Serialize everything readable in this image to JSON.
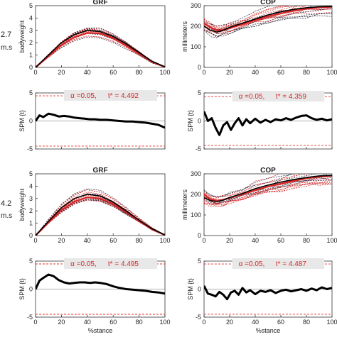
{
  "row_labels": [
    {
      "speed": "2.7",
      "unit": "m.s",
      "exp": "-1"
    },
    {
      "speed": "4.2",
      "unit": "m.s",
      "exp": "-1"
    }
  ],
  "xlabel": "%stance",
  "annotation_alpha": "α =0.05,",
  "colors": {
    "trace": "#d62728",
    "mean": "#000000",
    "spm": "#000000",
    "dashed": "#1a1a2e",
    "threshold": "#e0302a",
    "box": "#e8e8e8"
  },
  "chart_data": [
    {
      "id": "grf-2.7",
      "type": "line",
      "title": "GRF",
      "ylabel": "bodyweight",
      "xlim": [
        0,
        100
      ],
      "ylim": [
        0,
        5
      ],
      "xticks": [
        0,
        20,
        40,
        60,
        80,
        100
      ],
      "yticks": [
        0,
        1,
        2,
        3,
        4,
        5
      ],
      "x": [
        0,
        10,
        20,
        30,
        40,
        50,
        60,
        70,
        80,
        90,
        100
      ],
      "series": [
        {
          "values": [
            0,
            1.0,
            2.0,
            2.65,
            3.0,
            2.9,
            2.5,
            1.9,
            1.2,
            0.5,
            0.05
          ]
        },
        {
          "values": [
            0,
            0.9,
            1.8,
            2.45,
            2.8,
            2.75,
            2.35,
            1.75,
            1.1,
            0.45,
            0.03
          ]
        }
      ]
    },
    {
      "id": "cop-2.7",
      "type": "line",
      "title": "COP",
      "ylabel": "millimeters",
      "xlim": [
        0,
        100
      ],
      "ylim": [
        0,
        300
      ],
      "xticks": [
        0,
        20,
        40,
        60,
        80,
        100
      ],
      "yticks": [
        0,
        100,
        200,
        300
      ],
      "x": [
        0,
        5,
        10,
        15,
        20,
        30,
        40,
        50,
        60,
        70,
        80,
        90,
        100
      ],
      "series": [
        {
          "values": [
            200,
            180,
            172,
            180,
            195,
            215,
            235,
            255,
            270,
            282,
            290,
            295,
            296
          ]
        },
        {
          "values": [
            215,
            195,
            180,
            182,
            190,
            210,
            230,
            248,
            262,
            275,
            285,
            292,
            295
          ]
        }
      ]
    },
    {
      "id": "spm-2.7-grf",
      "type": "line",
      "ylabel": "SPM {t}",
      "xlim": [
        0,
        100
      ],
      "ylim": [
        -5,
        5
      ],
      "xticks": [
        0,
        20,
        40,
        60,
        80,
        100
      ],
      "yticks": [
        -5,
        0,
        5
      ],
      "threshold": 4.492,
      "t_label": "t* = 4.492",
      "x": [
        0,
        3,
        6,
        10,
        14,
        18,
        22,
        26,
        30,
        34,
        38,
        42,
        46,
        50,
        55,
        60,
        65,
        70,
        75,
        80,
        85,
        90,
        95,
        100
      ],
      "series": [
        {
          "values": [
            0,
            1.0,
            0.7,
            1.3,
            1.1,
            0.8,
            0.9,
            0.8,
            0.6,
            0.5,
            0.4,
            0.3,
            0.3,
            0.2,
            0.2,
            0.1,
            0.0,
            -0.1,
            -0.1,
            -0.2,
            -0.3,
            -0.5,
            -0.7,
            -1.2
          ]
        }
      ]
    },
    {
      "id": "spm-2.7-cop",
      "type": "line",
      "ylabel": "SPM {t}",
      "xlim": [
        0,
        100
      ],
      "ylim": [
        -5,
        5
      ],
      "xticks": [
        0,
        20,
        40,
        60,
        80,
        100
      ],
      "yticks": [
        -5,
        0,
        5
      ],
      "threshold": 4.359,
      "t_label": "t* = 4.359",
      "x": [
        0,
        3,
        6,
        9,
        12,
        15,
        18,
        21,
        24,
        27,
        30,
        33,
        36,
        40,
        44,
        48,
        52,
        56,
        60,
        64,
        68,
        72,
        76,
        80,
        84,
        88,
        92,
        96,
        100
      ],
      "series": [
        {
          "values": [
            1.7,
            0.0,
            0.5,
            -1.2,
            -2.5,
            -0.8,
            -0.2,
            -1.6,
            -0.4,
            0.5,
            -0.8,
            0.3,
            -0.4,
            0.4,
            -0.3,
            0.2,
            -0.2,
            0.3,
            0.1,
            0.5,
            0.2,
            0.6,
            0.9,
            1.0,
            0.5,
            0.2,
            0.4,
            0.1,
            0.3
          ]
        }
      ]
    },
    {
      "id": "grf-4.2",
      "type": "line",
      "title": "GRF",
      "ylabel": "bodyweight",
      "xlim": [
        0,
        100
      ],
      "ylim": [
        0,
        5
      ],
      "xticks": [
        0,
        20,
        40,
        60,
        80,
        100
      ],
      "yticks": [
        0,
        1,
        2,
        3,
        4,
        5
      ],
      "x": [
        0,
        10,
        20,
        30,
        40,
        50,
        60,
        70,
        80,
        90,
        100
      ],
      "series": [
        {
          "values": [
            0,
            1.15,
            2.25,
            3.0,
            3.35,
            3.2,
            2.7,
            2.0,
            1.25,
            0.55,
            0.05
          ]
        },
        {
          "values": [
            0,
            1.05,
            2.05,
            2.75,
            3.1,
            3.0,
            2.55,
            1.9,
            1.2,
            0.5,
            0.04
          ]
        }
      ]
    },
    {
      "id": "cop-4.2",
      "type": "line",
      "title": "COP",
      "ylabel": "millimeters",
      "xlim": [
        0,
        100
      ],
      "ylim": [
        0,
        300
      ],
      "xticks": [
        0,
        20,
        40,
        60,
        80,
        100
      ],
      "yticks": [
        0,
        100,
        200,
        300
      ],
      "x": [
        0,
        5,
        10,
        15,
        20,
        30,
        40,
        50,
        60,
        70,
        80,
        90,
        100
      ],
      "series": [
        {
          "values": [
            185,
            170,
            165,
            172,
            185,
            205,
            228,
            245,
            260,
            272,
            282,
            290,
            292
          ]
        },
        {
          "values": [
            198,
            178,
            170,
            174,
            183,
            200,
            220,
            238,
            252,
            266,
            278,
            286,
            290
          ]
        }
      ]
    },
    {
      "id": "spm-4.2-grf",
      "type": "line",
      "ylabel": "SPM {t}",
      "xlim": [
        0,
        100
      ],
      "ylim": [
        -5,
        5
      ],
      "xticks": [
        0,
        20,
        40,
        60,
        80,
        100
      ],
      "yticks": [
        -5,
        0,
        5
      ],
      "threshold": 4.495,
      "t_label": "t* = 4.495",
      "x": [
        0,
        3,
        6,
        10,
        14,
        18,
        22,
        26,
        30,
        34,
        38,
        42,
        46,
        50,
        55,
        60,
        65,
        70,
        75,
        80,
        85,
        90,
        95,
        100
      ],
      "series": [
        {
          "values": [
            0,
            1.5,
            2.0,
            2.6,
            2.3,
            1.6,
            1.2,
            1.0,
            1.1,
            1.2,
            1.2,
            1.1,
            1.2,
            1.1,
            0.9,
            0.5,
            0.2,
            0.0,
            -0.1,
            -0.2,
            -0.3,
            -0.5,
            -0.6,
            -0.8
          ]
        }
      ]
    },
    {
      "id": "spm-4.2-cop",
      "type": "line",
      "ylabel": "SPM {t}",
      "xlim": [
        0,
        100
      ],
      "ylim": [
        -5,
        5
      ],
      "xticks": [
        0,
        20,
        40,
        60,
        80,
        100
      ],
      "yticks": [
        -5,
        0,
        5
      ],
      "threshold": 4.487,
      "t_label": "t* = 4.487",
      "x": [
        0,
        3,
        6,
        9,
        12,
        15,
        18,
        21,
        24,
        27,
        30,
        33,
        36,
        40,
        44,
        48,
        52,
        56,
        60,
        64,
        68,
        72,
        76,
        80,
        84,
        88,
        92,
        96,
        100
      ],
      "series": [
        {
          "values": [
            0.6,
            -0.8,
            -1.0,
            -1.3,
            -0.5,
            -1.0,
            -1.8,
            -0.6,
            -0.3,
            -1.0,
            0.2,
            -0.6,
            -0.2,
            -0.9,
            -0.3,
            -0.5,
            -0.2,
            -0.7,
            -0.3,
            -0.1,
            -0.4,
            -0.2,
            0.0,
            -0.3,
            0.1,
            -0.2,
            0.3,
            0.0,
            0.2
          ]
        }
      ]
    }
  ]
}
